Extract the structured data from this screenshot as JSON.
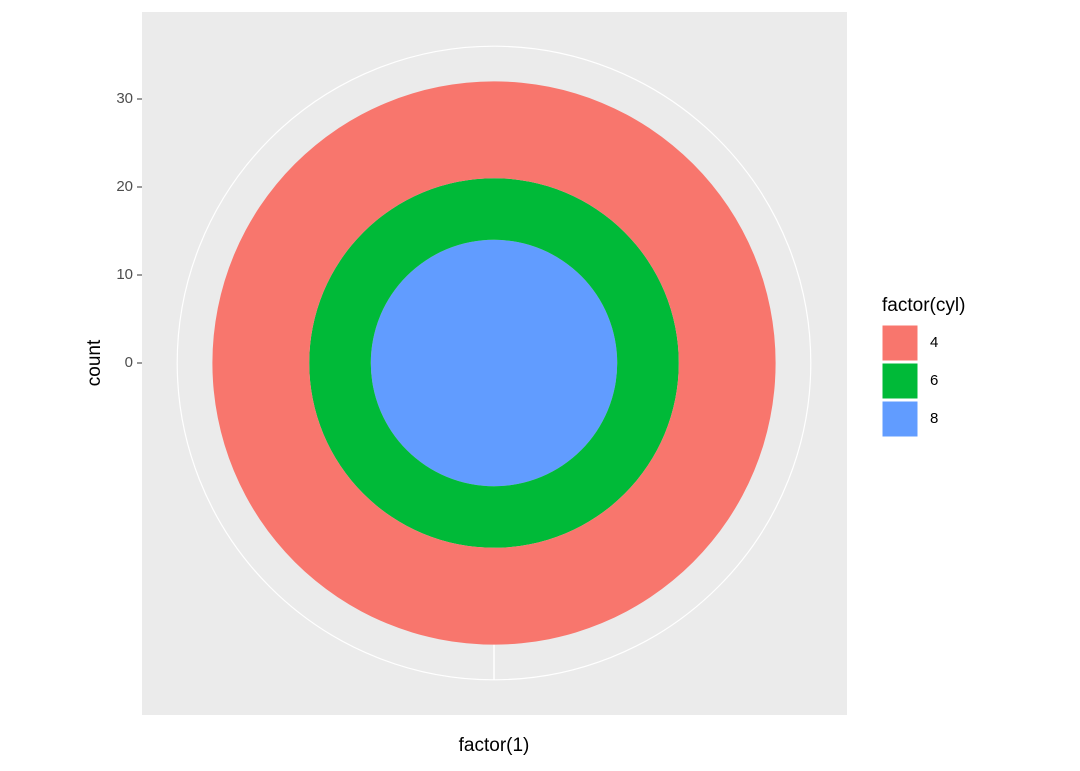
{
  "chart_data": {
    "type": "polar-stack",
    "x_label": "factor(1)",
    "y_label": "count",
    "legend_title": "factor(cyl)",
    "series": [
      {
        "name": "4",
        "color": "#F8766D",
        "values": [
          11
        ]
      },
      {
        "name": "6",
        "color": "#00BA38",
        "values": [
          7
        ]
      },
      {
        "name": "8",
        "color": "#619CFF",
        "values": [
          14
        ]
      }
    ],
    "ylim": [
      0,
      36
    ],
    "yticks": [
      0,
      10,
      20,
      30
    ],
    "grid": true,
    "legend": "right"
  }
}
